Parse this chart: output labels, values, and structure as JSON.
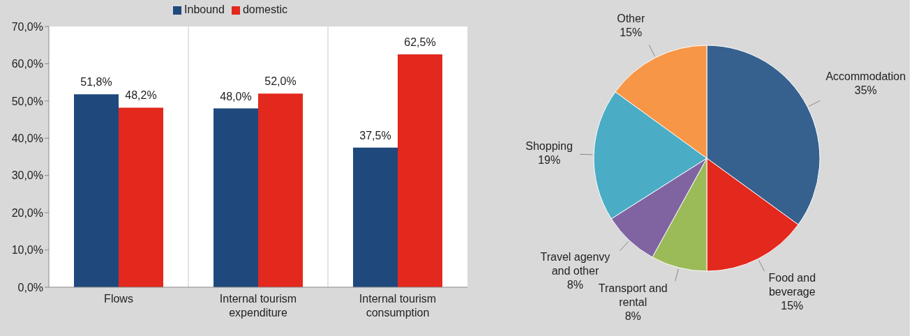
{
  "chart_data": [
    {
      "type": "bar",
      "categories": [
        "Flows",
        "Internal tourism expenditure",
        "Internal tourism consumption"
      ],
      "series": [
        {
          "name": "Inbound",
          "color": "#1f497d",
          "values": [
            51.8,
            48.0,
            37.5
          ],
          "value_labels": [
            "51,8%",
            "48,0%",
            "37,5%"
          ]
        },
        {
          "name": "domestic",
          "color": "#e3281d",
          "values": [
            48.2,
            52.0,
            62.5
          ],
          "value_labels": [
            "48,2%",
            "52,0%",
            "62,5%"
          ]
        }
      ],
      "ylim": [
        0,
        70
      ],
      "yticks": [
        {
          "value": 0,
          "label": "0,0%"
        },
        {
          "value": 10,
          "label": "10,0%"
        },
        {
          "value": 20,
          "label": "20,0%"
        },
        {
          "value": 30,
          "label": "30,0%"
        },
        {
          "value": 40,
          "label": "40,0%"
        },
        {
          "value": 50,
          "label": "50,0%"
        },
        {
          "value": 60,
          "label": "60,0%"
        },
        {
          "value": 70,
          "label": "70,0%"
        }
      ],
      "grid": "x",
      "legend": "top"
    },
    {
      "type": "pie",
      "categories": [
        "Accommodation",
        "Food and beverage",
        "Transport and rental",
        "Travel agenvy and other",
        "Shopping",
        "Other"
      ],
      "values": [
        35,
        15,
        8,
        8,
        19,
        15
      ],
      "value_labels": [
        "35%",
        "15%",
        "8%",
        "8%",
        "19%",
        "15%"
      ],
      "colors": [
        "#36618f",
        "#e3281d",
        "#9bbb59",
        "#8064a2",
        "#4bacc6",
        "#f79646"
      ]
    }
  ]
}
